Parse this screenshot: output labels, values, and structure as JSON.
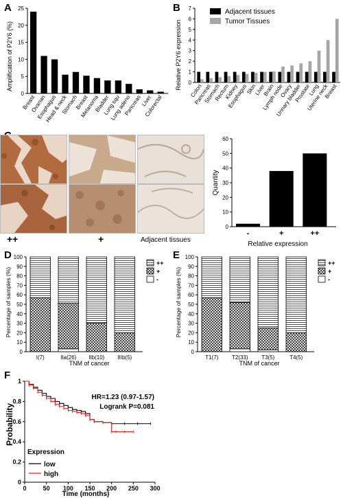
{
  "chart_data": [
    {
      "panel": "A",
      "type": "bar",
      "ylabel": "Amplification of P2Y6 (%)",
      "ylim": [
        0,
        25
      ],
      "yticks": [
        0,
        5,
        10,
        15,
        20,
        25
      ],
      "categories": [
        "Breast",
        "Ovarian",
        "Esophagus",
        "Head & neck",
        "Stomach",
        "Breast",
        "Melanoma",
        "Bladder",
        "Lung squ",
        "Lung adeno",
        "Pancreas",
        "Liver",
        "Colorectal"
      ],
      "values": [
        24,
        11,
        10,
        5.5,
        6.3,
        5.2,
        4.5,
        3.8,
        3.8,
        2.8,
        1.2,
        0.9,
        0.5
      ],
      "color": "#000000"
    },
    {
      "panel": "B",
      "type": "bar",
      "ylabel": "Relative P2Y6 expression",
      "ylim": [
        0,
        7
      ],
      "yticks": [
        0,
        1,
        2,
        3,
        4,
        5,
        6,
        7
      ],
      "legend_position": "top",
      "categories": [
        "Colon",
        "Pancreas",
        "Stomach",
        "Rectum",
        "Kidney",
        "Esophagus",
        "Skin",
        "Liver",
        "Brain",
        "Lymph node",
        "Ovary",
        "Urinary bladder",
        "Prostate",
        "Lung",
        "Uterine neck",
        "Breast"
      ],
      "series": [
        {
          "name": "Adjacent tissues",
          "color": "#000000",
          "values": [
            1,
            1,
            1,
            1,
            1,
            1,
            1,
            1,
            1,
            1,
            1,
            1,
            1,
            1,
            1,
            1
          ]
        },
        {
          "name": "Tumor Tissues",
          "color": "#a6a6a6",
          "values": [
            0.3,
            0.4,
            0.5,
            0.6,
            0.7,
            0.8,
            0.9,
            1.0,
            1.05,
            1.5,
            1.6,
            1.8,
            2.0,
            3.0,
            4.0,
            6.0
          ]
        }
      ]
    },
    {
      "panel": "C",
      "type": "bar",
      "xlabel": "Relative expression",
      "ylabel": "Quantity",
      "ylim": [
        0,
        60
      ],
      "yticks": [
        0,
        10,
        20,
        30,
        40,
        50,
        60
      ],
      "categories": [
        "-",
        "+",
        "++"
      ],
      "values": [
        2,
        38,
        50
      ],
      "color": "#000000",
      "image_labels": [
        "++",
        "+",
        "Adjacent tissues"
      ]
    },
    {
      "panel": "D",
      "type": "bar",
      "stacked": true,
      "xlabel": "TNM of cancer",
      "ylabel": "Percentage of samples (%)",
      "ylim": [
        0,
        100
      ],
      "yticks": [
        0,
        10,
        20,
        30,
        40,
        50,
        60,
        70,
        80,
        90,
        100
      ],
      "categories": [
        "I(7)",
        "IIa(26)",
        "IIb(10)",
        "IIIb(5)"
      ],
      "legend_position": "right",
      "series": [
        {
          "name": "-",
          "values": [
            0,
            3,
            0,
            0
          ]
        },
        {
          "name": "+",
          "values": [
            57,
            48,
            30,
            20
          ]
        },
        {
          "name": "++",
          "values": [
            43,
            49,
            70,
            80
          ]
        }
      ]
    },
    {
      "panel": "E",
      "type": "bar",
      "stacked": true,
      "xlabel": "TNM of cancer",
      "ylabel": "Percentage of samples (%)",
      "ylim": [
        0,
        100
      ],
      "yticks": [
        0,
        10,
        20,
        30,
        40,
        50,
        60,
        70,
        80,
        90,
        100
      ],
      "categories": [
        "T1(7)",
        "T2(33)",
        "T3(5)",
        "T4(5)"
      ],
      "legend_position": "right",
      "series": [
        {
          "name": "-",
          "values": [
            0,
            3,
            2,
            0
          ]
        },
        {
          "name": "+",
          "values": [
            57,
            49,
            23,
            20
          ]
        },
        {
          "name": "++",
          "values": [
            43,
            48,
            75,
            80
          ]
        }
      ]
    },
    {
      "panel": "F",
      "type": "line",
      "xlabel": "Time (months)",
      "ylabel": "Probability",
      "xlim": [
        0,
        300
      ],
      "ylim": [
        0,
        1
      ],
      "xticks": [
        0,
        50,
        100,
        150,
        200,
        250,
        300
      ],
      "yticks": [
        0,
        0.2,
        0.4,
        0.6,
        0.8,
        1
      ],
      "annotations": [
        "HR=1.23 (0.97-1.57)",
        "Logrank P=0.081"
      ],
      "legend_title": "Expression",
      "series": [
        {
          "name": "low",
          "color": "#000000",
          "x": [
            0,
            10,
            20,
            30,
            40,
            50,
            60,
            70,
            80,
            90,
            100,
            110,
            120,
            130,
            140,
            150,
            160,
            180,
            200,
            230,
            260,
            290
          ],
          "y": [
            1,
            0.97,
            0.94,
            0.91,
            0.88,
            0.85,
            0.83,
            0.8,
            0.78,
            0.76,
            0.74,
            0.72,
            0.71,
            0.7,
            0.68,
            0.62,
            0.6,
            0.59,
            0.58,
            0.58,
            0.58,
            0.58
          ]
        },
        {
          "name": "high",
          "color": "#e02020",
          "x": [
            0,
            10,
            20,
            30,
            40,
            50,
            60,
            70,
            80,
            90,
            100,
            110,
            120,
            130,
            140,
            150,
            160,
            180,
            200,
            210,
            230,
            250
          ],
          "y": [
            1,
            0.96,
            0.93,
            0.89,
            0.86,
            0.83,
            0.8,
            0.77,
            0.75,
            0.73,
            0.71,
            0.7,
            0.69,
            0.68,
            0.66,
            0.62,
            0.6,
            0.59,
            0.5,
            0.5,
            0.5,
            0.5
          ]
        }
      ]
    }
  ],
  "panel_letters": [
    "A",
    "B",
    "C",
    "D",
    "E",
    "F"
  ]
}
